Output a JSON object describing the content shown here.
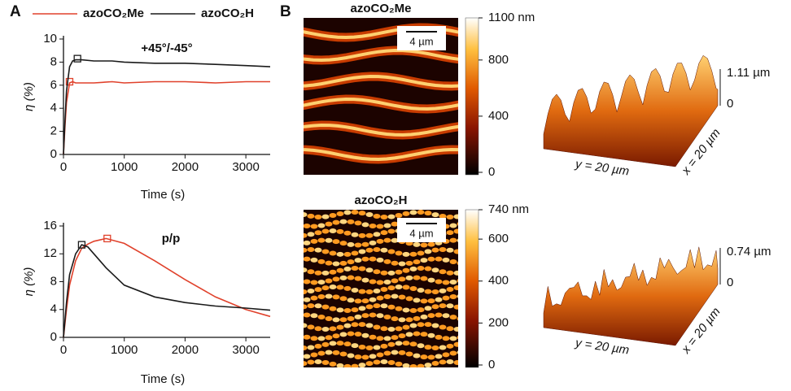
{
  "panels": {
    "a": "A",
    "b": "B"
  },
  "chart_data": [
    {
      "type": "line",
      "title": "+45°/-45°",
      "x_label": "Time (s)",
      "y_label": "η (%)",
      "x": [
        0,
        25,
        50,
        100,
        150,
        200,
        300,
        500,
        800,
        1000,
        1500,
        2000,
        2500,
        3000,
        3400
      ],
      "series": [
        {
          "name": "azoCO₂Me",
          "color": "#e0412b",
          "values": [
            0,
            2.5,
            4.5,
            6.2,
            6.3,
            6.2,
            6.2,
            6.2,
            6.3,
            6.2,
            6.3,
            6.3,
            6.2,
            6.3,
            6.3
          ],
          "marker_x": 100,
          "marker_y": 6.3
        },
        {
          "name": "azoCO₂H",
          "color": "#1a1a1a",
          "values": [
            0,
            3,
            5.5,
            7.6,
            8.1,
            8.2,
            8.2,
            8.1,
            8.1,
            8.0,
            7.9,
            7.9,
            7.8,
            7.7,
            7.6
          ],
          "marker_x": 230,
          "marker_y": 8.3
        }
      ],
      "xlim": [
        0,
        3400
      ],
      "xticks": [
        0,
        1000,
        2000,
        3000
      ],
      "ylim": [
        0,
        10
      ],
      "yticks": [
        0,
        2,
        4,
        6,
        8,
        10
      ]
    },
    {
      "type": "line",
      "title": "p/p",
      "x_label": "Time (s)",
      "y_label": "η (%)",
      "x": [
        0,
        50,
        100,
        200,
        300,
        400,
        500,
        700,
        1000,
        1500,
        2000,
        2500,
        3000,
        3400
      ],
      "series": [
        {
          "name": "azoCO₂Me",
          "color": "#e0412b",
          "values": [
            0,
            4,
            7.5,
            11,
            12.8,
            13.4,
            13.8,
            14.2,
            13.5,
            11.0,
            8.3,
            5.8,
            4.0,
            3.0
          ],
          "marker_x": 720,
          "marker_y": 14.2
        },
        {
          "name": "azoCO₂H",
          "color": "#1a1a1a",
          "values": [
            0,
            5,
            9,
            12,
            13.3,
            13.0,
            12.0,
            10.0,
            7.5,
            5.8,
            5.0,
            4.5,
            4.2,
            3.9
          ],
          "marker_x": 300,
          "marker_y": 13.3
        }
      ],
      "xlim": [
        0,
        3400
      ],
      "xticks": [
        0,
        1000,
        2000,
        3000
      ],
      "ylim": [
        0,
        16
      ],
      "yticks": [
        0,
        4,
        8,
        12,
        16
      ]
    }
  ],
  "afm_maps": [
    {
      "title": "azoCO₂Me",
      "scale_bar": "4 µm",
      "colorbar_lim": [
        0,
        1100
      ],
      "colorbar_ticks": [
        0,
        400,
        800,
        {
          "value": 1100,
          "label": "1100 nm"
        }
      ],
      "surface": {
        "top_label": "1.11 µm",
        "bottom_label": "0",
        "y_label": "y = 20 µm",
        "x_label": "x = 20 µm"
      }
    },
    {
      "title": "azoCO₂H",
      "scale_bar": "4 µm",
      "colorbar_lim": [
        0,
        740
      ],
      "colorbar_ticks": [
        0,
        200,
        400,
        600,
        {
          "value": 740,
          "label": "740 nm"
        }
      ],
      "surface": {
        "top_label": "0.74 µm",
        "bottom_label": "0",
        "y_label": "y = 20 µm",
        "x_label": "x = 20 µm"
      }
    }
  ]
}
